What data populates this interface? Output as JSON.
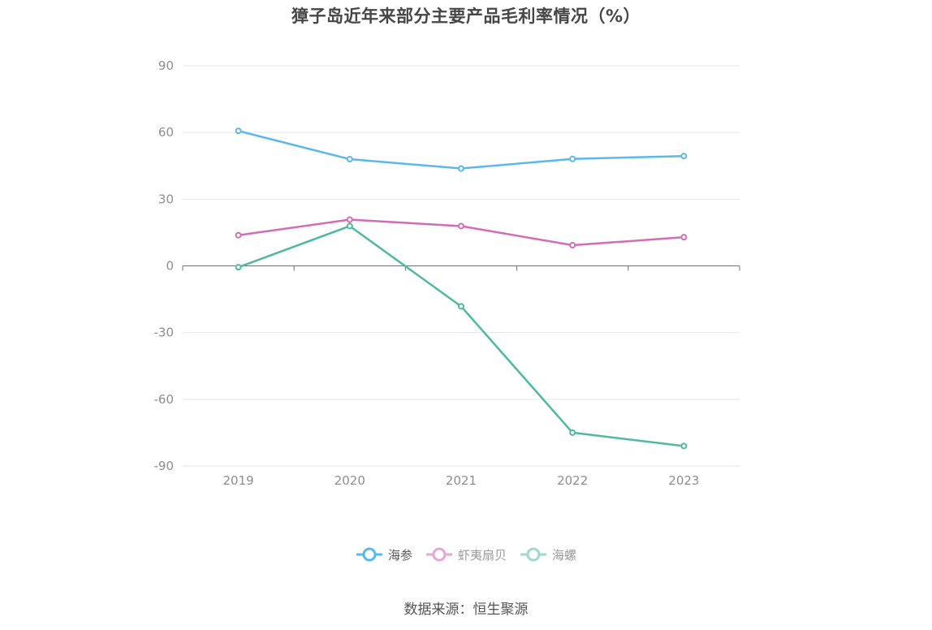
{
  "chart_data": {
    "type": "line",
    "title": "獐子岛近年来部分主要产品毛利率情况（%）",
    "categories": [
      "2019",
      "2020",
      "2021",
      "2022",
      "2023"
    ],
    "ylim": [
      -90,
      90
    ],
    "yticks": [
      90,
      60,
      30,
      0,
      -30,
      -60,
      -90
    ],
    "yticklabels": [
      "90",
      "60",
      "30",
      "0",
      "-30",
      "-60",
      "-90"
    ],
    "grid": true,
    "legend_position": "bottom",
    "series": [
      {
        "name": "海参",
        "color": "#5ab8ee",
        "values": [
          60.7,
          48.0,
          43.8,
          48.1,
          49.4
        ]
      },
      {
        "name": "虾夷扇贝",
        "color": "#d46bb5",
        "values": [
          13.8,
          20.8,
          17.9,
          9.3,
          12.9
        ]
      },
      {
        "name": "海螺",
        "color": "#4fb9a0",
        "values": [
          -0.6,
          17.9,
          -18.2,
          -75.0,
          -81.0
        ]
      }
    ]
  },
  "legend": {
    "items": [
      {
        "label": "海参",
        "color": "#5ab8ee",
        "faded": false
      },
      {
        "label": "虾夷扇贝",
        "color": "#e7a6d3",
        "faded": true
      },
      {
        "label": "海螺",
        "color": "#9dd9cb",
        "faded": true
      }
    ]
  },
  "source": "数据来源：恒生聚源"
}
